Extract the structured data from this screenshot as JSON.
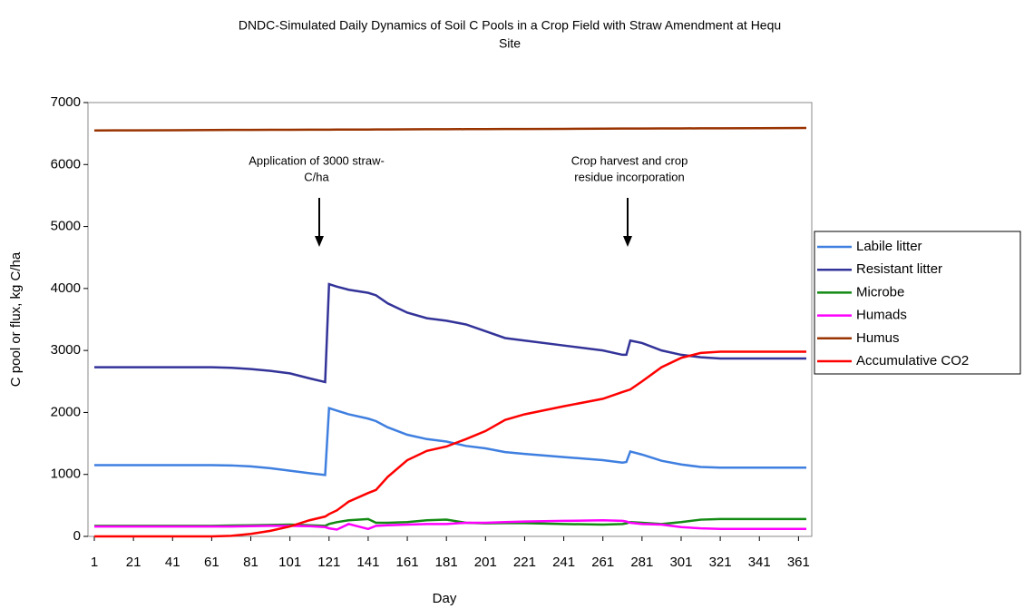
{
  "chart_data": {
    "type": "line",
    "title": [
      "DNDC-Simulated Daily Dynamics of Soil C Pools in a Crop Field with Straw Amendment at Hequ",
      "Site"
    ],
    "x_label": "Day",
    "y_label": "C pool or flux, kg C/ha",
    "annotations": [
      [
        "Application of 3000 straw-",
        "C/ha"
      ],
      [
        "Crop harvest and crop",
        "residue incorporation"
      ]
    ],
    "x": [
      1,
      21,
      41,
      61,
      71,
      81,
      91,
      101,
      111,
      119,
      121,
      125,
      131,
      141,
      145,
      151,
      161,
      171,
      181,
      191,
      201,
      211,
      221,
      241,
      261,
      271,
      273,
      275,
      281,
      291,
      301,
      311,
      321,
      341,
      365
    ],
    "series": [
      {
        "name": "Labile litter",
        "color": "#3f7fe0",
        "values": [
          1150,
          1150,
          1150,
          1150,
          1145,
          1130,
          1100,
          1060,
          1020,
          990,
          2070,
          2030,
          1970,
          1900,
          1860,
          1760,
          1640,
          1570,
          1530,
          1460,
          1420,
          1360,
          1330,
          1280,
          1230,
          1190,
          1200,
          1370,
          1320,
          1220,
          1160,
          1120,
          1110,
          1110,
          1110
        ]
      },
      {
        "name": "Resistant litter",
        "color": "#333399",
        "values": [
          2730,
          2730,
          2730,
          2730,
          2720,
          2700,
          2670,
          2630,
          2550,
          2490,
          4070,
          4030,
          3980,
          3930,
          3890,
          3760,
          3610,
          3520,
          3480,
          3420,
          3310,
          3200,
          3160,
          3080,
          3000,
          2930,
          2930,
          3160,
          3120,
          3000,
          2930,
          2890,
          2870,
          2870,
          2870
        ]
      },
      {
        "name": "Microbe",
        "color": "#138a13",
        "values": [
          170,
          170,
          170,
          170,
          175,
          180,
          185,
          190,
          180,
          170,
          200,
          230,
          260,
          280,
          220,
          220,
          230,
          260,
          270,
          220,
          210,
          215,
          215,
          200,
          190,
          200,
          210,
          230,
          220,
          200,
          230,
          270,
          280,
          280,
          280
        ]
      },
      {
        "name": "Humads",
        "color": "#ff00ff",
        "values": [
          160,
          160,
          160,
          160,
          160,
          165,
          170,
          170,
          165,
          150,
          130,
          110,
          200,
          120,
          170,
          180,
          190,
          200,
          200,
          220,
          220,
          230,
          240,
          250,
          260,
          250,
          240,
          220,
          200,
          190,
          150,
          130,
          120,
          120,
          120
        ]
      },
      {
        "name": "Humus",
        "color": "#993300",
        "values": [
          6550,
          6552,
          6554,
          6557,
          6558,
          6559,
          6560,
          6561,
          6562,
          6563,
          6563,
          6564,
          6564,
          6565,
          6566,
          6566,
          6568,
          6569,
          6570,
          6571,
          6572,
          6573,
          6574,
          6576,
          6579,
          6580,
          6580,
          6580,
          6581,
          6582,
          6583,
          6584,
          6585,
          6587,
          6590
        ]
      },
      {
        "name": "Accumulative CO2",
        "color": "#ff0000",
        "values": [
          0,
          0,
          0,
          0,
          10,
          40,
          90,
          160,
          260,
          320,
          360,
          420,
          560,
          700,
          750,
          960,
          1230,
          1380,
          1450,
          1570,
          1700,
          1880,
          1970,
          2100,
          2220,
          2330,
          2350,
          2370,
          2500,
          2730,
          2880,
          2960,
          2980,
          2980,
          2980
        ]
      }
    ],
    "xlim": [
      1,
      365
    ],
    "xticks": [
      1,
      21,
      41,
      61,
      81,
      101,
      121,
      141,
      161,
      181,
      201,
      221,
      241,
      261,
      281,
      301,
      321,
      341,
      361
    ],
    "ylim": [
      0,
      7000
    ],
    "yticks": [
      0,
      1000,
      2000,
      3000,
      4000,
      5000,
      6000,
      7000
    ],
    "legend": "right"
  }
}
